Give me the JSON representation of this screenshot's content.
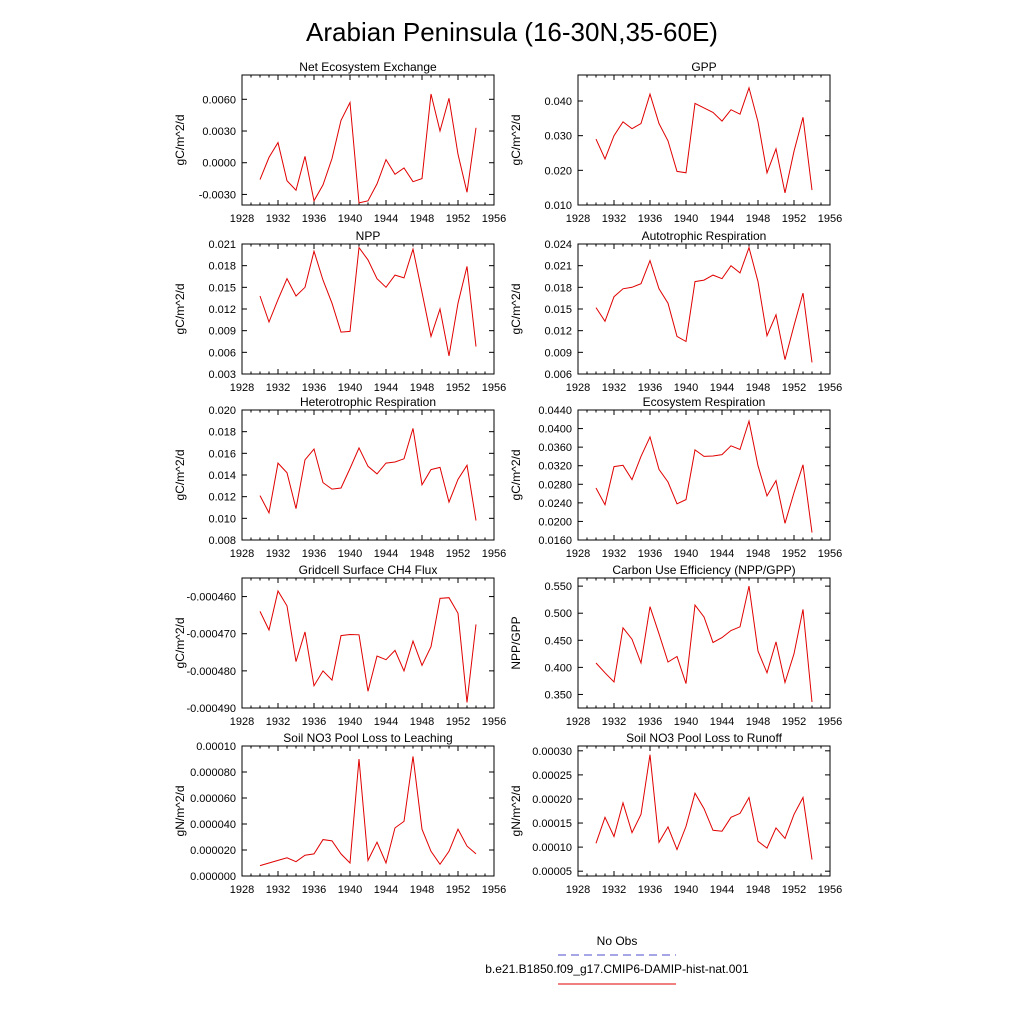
{
  "figure": {
    "title": "Arabian Peninsula (16-30N,35-60E)",
    "legend": [
      {
        "label": "No Obs",
        "color": "#4d4dcc",
        "dash": true
      },
      {
        "label": "b.e21.B1850.f09_g17.CMIP6-DAMIP-hist-nat.001",
        "color": "#e00000",
        "dash": false
      }
    ]
  },
  "chart_data": [
    {
      "type": "line",
      "title": "Net Ecosystem Exchange",
      "ylabel": "gC/m^2/d",
      "xlim": [
        1928,
        1956
      ],
      "xticks": [
        "1928",
        "1932",
        "1936",
        "1940",
        "1944",
        "1948",
        "1952",
        "1956"
      ],
      "ylim": [
        -0.004,
        0.0083
      ],
      "yticks": [
        "-0.0030",
        "0.0000",
        "0.0030",
        "0.0060"
      ],
      "ytick_values": [
        -0.003,
        0.0,
        0.003,
        0.006
      ],
      "x": [
        1930,
        1931,
        1932,
        1933,
        1934,
        1935,
        1936,
        1937,
        1938,
        1939,
        1940,
        1941,
        1942,
        1943,
        1944,
        1945,
        1946,
        1947,
        1948,
        1949,
        1950,
        1951,
        1952,
        1953,
        1954
      ],
      "y": [
        -0.0016,
        0.0005,
        0.0019,
        -0.0017,
        -0.0026,
        0.0006,
        -0.0036,
        -0.0021,
        0.0004,
        0.004,
        0.0057,
        -0.0038,
        -0.0036,
        -0.002,
        0.0003,
        -0.0011,
        -0.0005,
        -0.0018,
        -0.0015,
        0.0065,
        0.003,
        0.0061,
        0.0008,
        -0.0028,
        0.0033
      ]
    },
    {
      "type": "line",
      "title": "GPP",
      "ylabel": "gC/m^2/d",
      "xlim": [
        1928,
        1956
      ],
      "xticks": [
        "1928",
        "1932",
        "1936",
        "1940",
        "1944",
        "1948",
        "1952",
        "1956"
      ],
      "ylim": [
        0.01,
        0.0475
      ],
      "yticks": [
        "0.010",
        "0.020",
        "0.030",
        "0.040"
      ],
      "ytick_values": [
        0.01,
        0.02,
        0.03,
        0.04
      ],
      "x": [
        1930,
        1931,
        1932,
        1933,
        1934,
        1935,
        1936,
        1937,
        1938,
        1939,
        1940,
        1941,
        1942,
        1943,
        1944,
        1945,
        1946,
        1947,
        1948,
        1949,
        1950,
        1951,
        1952,
        1953,
        1954
      ],
      "y": [
        0.029,
        0.0233,
        0.03,
        0.034,
        0.032,
        0.0335,
        0.042,
        0.0335,
        0.0285,
        0.0197,
        0.0193,
        0.0393,
        0.038,
        0.0367,
        0.0342,
        0.0375,
        0.0362,
        0.0438,
        0.034,
        0.0193,
        0.0262,
        0.0135,
        0.0255,
        0.0353,
        0.0143
      ]
    },
    {
      "type": "line",
      "title": "NPP",
      "ylabel": "gC/m^2/d",
      "xlim": [
        1928,
        1956
      ],
      "xticks": [
        "1928",
        "1932",
        "1936",
        "1940",
        "1944",
        "1948",
        "1952",
        "1956"
      ],
      "ylim": [
        0.003,
        0.021
      ],
      "yticks": [
        "0.003",
        "0.006",
        "0.009",
        "0.012",
        "0.015",
        "0.018",
        "0.021"
      ],
      "ytick_values": [
        0.003,
        0.006,
        0.009,
        0.012,
        0.015,
        0.018,
        0.021
      ],
      "x": [
        1930,
        1931,
        1932,
        1933,
        1934,
        1935,
        1936,
        1937,
        1938,
        1939,
        1940,
        1941,
        1942,
        1943,
        1944,
        1945,
        1946,
        1947,
        1948,
        1949,
        1950,
        1951,
        1952,
        1953,
        1954
      ],
      "y": [
        0.0138,
        0.0102,
        0.0133,
        0.0162,
        0.0138,
        0.015,
        0.02,
        0.016,
        0.0128,
        0.0088,
        0.0089,
        0.0205,
        0.0188,
        0.0162,
        0.015,
        0.0167,
        0.0163,
        0.0203,
        0.0143,
        0.0082,
        0.012,
        0.0055,
        0.0128,
        0.0179,
        0.0068
      ]
    },
    {
      "type": "line",
      "title": "Autotrophic Respiration",
      "ylabel": "gC/m^2/d",
      "xlim": [
        1928,
        1956
      ],
      "xticks": [
        "1928",
        "1932",
        "1936",
        "1940",
        "1944",
        "1948",
        "1952",
        "1956"
      ],
      "ylim": [
        0.006,
        0.024
      ],
      "yticks": [
        "0.006",
        "0.009",
        "0.012",
        "0.015",
        "0.018",
        "0.021",
        "0.024"
      ],
      "ytick_values": [
        0.006,
        0.009,
        0.012,
        0.015,
        0.018,
        0.021,
        0.024
      ],
      "x": [
        1930,
        1931,
        1932,
        1933,
        1934,
        1935,
        1936,
        1937,
        1938,
        1939,
        1940,
        1941,
        1942,
        1943,
        1944,
        1945,
        1946,
        1947,
        1948,
        1949,
        1950,
        1951,
        1952,
        1953,
        1954
      ],
      "y": [
        0.0152,
        0.0133,
        0.0167,
        0.0178,
        0.018,
        0.0185,
        0.0217,
        0.0178,
        0.0158,
        0.0112,
        0.0105,
        0.0188,
        0.019,
        0.0197,
        0.0192,
        0.021,
        0.02,
        0.0235,
        0.0188,
        0.0113,
        0.0142,
        0.008,
        0.0127,
        0.0172,
        0.0076
      ]
    },
    {
      "type": "line",
      "title": "Heterotrophic Respiration",
      "ylabel": "gC/m^2/d",
      "xlim": [
        1928,
        1956
      ],
      "xticks": [
        "1928",
        "1932",
        "1936",
        "1940",
        "1944",
        "1948",
        "1952",
        "1956"
      ],
      "ylim": [
        0.008,
        0.02
      ],
      "yticks": [
        "0.008",
        "0.010",
        "0.012",
        "0.014",
        "0.016",
        "0.018",
        "0.020"
      ],
      "ytick_values": [
        0.008,
        0.01,
        0.012,
        0.014,
        0.016,
        0.018,
        0.02
      ],
      "x": [
        1930,
        1931,
        1932,
        1933,
        1934,
        1935,
        1936,
        1937,
        1938,
        1939,
        1940,
        1941,
        1942,
        1943,
        1944,
        1945,
        1946,
        1947,
        1948,
        1949,
        1950,
        1951,
        1952,
        1953,
        1954
      ],
      "y": [
        0.0121,
        0.0105,
        0.0151,
        0.0142,
        0.0109,
        0.0154,
        0.0164,
        0.0133,
        0.0127,
        0.0128,
        0.0146,
        0.0165,
        0.0148,
        0.0141,
        0.0151,
        0.0152,
        0.0155,
        0.0183,
        0.0131,
        0.0145,
        0.0147,
        0.0115,
        0.0136,
        0.0149,
        0.0098
      ]
    },
    {
      "type": "line",
      "title": "Ecosystem Respiration",
      "ylabel": "gC/m^2/d",
      "xlim": [
        1928,
        1956
      ],
      "xticks": [
        "1928",
        "1932",
        "1936",
        "1940",
        "1944",
        "1948",
        "1952",
        "1956"
      ],
      "ylim": [
        0.016,
        0.044
      ],
      "yticks": [
        "0.0160",
        "0.0200",
        "0.0240",
        "0.0280",
        "0.0320",
        "0.0360",
        "0.0400",
        "0.0440"
      ],
      "ytick_values": [
        0.016,
        0.02,
        0.024,
        0.028,
        0.032,
        0.036,
        0.04,
        0.044
      ],
      "x": [
        1930,
        1931,
        1932,
        1933,
        1934,
        1935,
        1936,
        1937,
        1938,
        1939,
        1940,
        1941,
        1942,
        1943,
        1944,
        1945,
        1946,
        1947,
        1948,
        1949,
        1950,
        1951,
        1952,
        1953,
        1954
      ],
      "y": [
        0.0272,
        0.0236,
        0.0318,
        0.0321,
        0.029,
        0.034,
        0.0382,
        0.0312,
        0.0285,
        0.0238,
        0.0247,
        0.0354,
        0.034,
        0.0341,
        0.0344,
        0.0363,
        0.0355,
        0.0416,
        0.032,
        0.0255,
        0.0288,
        0.0196,
        0.0262,
        0.0322,
        0.0176
      ]
    },
    {
      "type": "line",
      "title": "Gridcell Surface CH4 Flux",
      "ylabel": "gC/m^2/d",
      "xlim": [
        1928,
        1956
      ],
      "xticks": [
        "1928",
        "1932",
        "1936",
        "1940",
        "1944",
        "1948",
        "1952",
        "1956"
      ],
      "ylim": [
        -0.00049,
        -0.000455
      ],
      "yticks": [
        "-0.000490",
        "-0.000480",
        "-0.000470",
        "-0.000460"
      ],
      "ytick_values": [
        -0.00049,
        -0.00048,
        -0.00047,
        -0.00046
      ],
      "x": [
        1930,
        1931,
        1932,
        1933,
        1934,
        1935,
        1936,
        1937,
        1938,
        1939,
        1940,
        1941,
        1942,
        1943,
        1944,
        1945,
        1946,
        1947,
        1948,
        1949,
        1950,
        1951,
        1952,
        1953,
        1954
      ],
      "y": [
        -0.000464,
        -0.000469,
        -0.0004585,
        -0.0004625,
        -0.0004775,
        -0.0004695,
        -0.000484,
        -0.00048,
        -0.0004825,
        -0.0004705,
        -0.0004702,
        -0.0004703,
        -0.0004855,
        -0.000476,
        -0.000477,
        -0.0004745,
        -0.00048,
        -0.000472,
        -0.0004785,
        -0.0004735,
        -0.0004605,
        -0.0004603,
        -0.0004645,
        -0.0004885,
        -0.0004675
      ]
    },
    {
      "type": "line",
      "title": "Carbon Use Efficiency (NPP/GPP)",
      "ylabel": "NPP/GPP",
      "xlim": [
        1928,
        1956
      ],
      "xticks": [
        "1928",
        "1932",
        "1936",
        "1940",
        "1944",
        "1948",
        "1952",
        "1956"
      ],
      "ylim": [
        0.325,
        0.565
      ],
      "yticks": [
        "0.350",
        "0.400",
        "0.450",
        "0.500",
        "0.550"
      ],
      "ytick_values": [
        0.35,
        0.4,
        0.45,
        0.5,
        0.55
      ],
      "x": [
        1930,
        1931,
        1932,
        1933,
        1934,
        1935,
        1936,
        1937,
        1938,
        1939,
        1940,
        1941,
        1942,
        1943,
        1944,
        1945,
        1946,
        1947,
        1948,
        1949,
        1950,
        1951,
        1952,
        1953,
        1954
      ],
      "y": [
        0.408,
        0.39,
        0.373,
        0.473,
        0.452,
        0.408,
        0.512,
        0.462,
        0.41,
        0.42,
        0.37,
        0.515,
        0.493,
        0.446,
        0.455,
        0.468,
        0.475,
        0.55,
        0.43,
        0.39,
        0.447,
        0.372,
        0.425,
        0.507,
        0.336
      ]
    },
    {
      "type": "line",
      "title": "Soil NO3 Pool Loss to Leaching",
      "ylabel": "gN/m^2/d",
      "xlim": [
        1928,
        1956
      ],
      "xticks": [
        "1928",
        "1932",
        "1936",
        "1940",
        "1944",
        "1948",
        "1952",
        "1956"
      ],
      "ylim": [
        0.0,
        0.0001
      ],
      "yticks": [
        "0.000000",
        "0.000020",
        "0.000040",
        "0.000060",
        "0.000080",
        "0.00010"
      ],
      "ytick_values": [
        0.0,
        2e-05,
        4e-05,
        6e-05,
        8e-05,
        0.0001
      ],
      "x": [
        1930,
        1931,
        1932,
        1933,
        1934,
        1935,
        1936,
        1937,
        1938,
        1939,
        1940,
        1941,
        1942,
        1943,
        1944,
        1945,
        1946,
        1947,
        1948,
        1949,
        1950,
        1951,
        1952,
        1953,
        1954
      ],
      "y": [
        8e-06,
        1e-05,
        1.2e-05,
        1.4e-05,
        1.1e-05,
        1.6e-05,
        1.7e-05,
        2.8e-05,
        2.7e-05,
        1.7e-05,
        1e-05,
        9e-05,
        1.2e-05,
        2.6e-05,
        1e-05,
        3.7e-05,
        4.2e-05,
        9.2e-05,
        3.6e-05,
        1.9e-05,
        9e-06,
        1.9e-05,
        3.6e-05,
        2.3e-05,
        1.7e-05
      ]
    },
    {
      "type": "line",
      "title": "Soil NO3 Pool Loss to Runoff",
      "ylabel": "gN/m^2/d",
      "xlim": [
        1928,
        1956
      ],
      "xticks": [
        "1928",
        "1932",
        "1936",
        "1940",
        "1944",
        "1948",
        "1952",
        "1956"
      ],
      "ylim": [
        4e-05,
        0.00031
      ],
      "yticks": [
        "0.00005",
        "0.00010",
        "0.00015",
        "0.00020",
        "0.00025",
        "0.00030"
      ],
      "ytick_values": [
        5e-05,
        0.0001,
        0.00015,
        0.0002,
        0.00025,
        0.0003
      ],
      "x": [
        1930,
        1931,
        1932,
        1933,
        1934,
        1935,
        1936,
        1937,
        1938,
        1939,
        1940,
        1941,
        1942,
        1943,
        1944,
        1945,
        1946,
        1947,
        1948,
        1949,
        1950,
        1951,
        1952,
        1953,
        1954
      ],
      "y": [
        0.000108,
        0.000162,
        0.000122,
        0.000192,
        0.00013,
        0.000168,
        0.000292,
        0.00011,
        0.000142,
        9.5e-05,
        0.000143,
        0.000212,
        0.00018,
        0.000135,
        0.000133,
        0.000162,
        0.00017,
        0.000203,
        0.000112,
        9.8e-05,
        0.00014,
        0.000118,
        0.000168,
        0.000203,
        7.4e-05
      ]
    }
  ]
}
